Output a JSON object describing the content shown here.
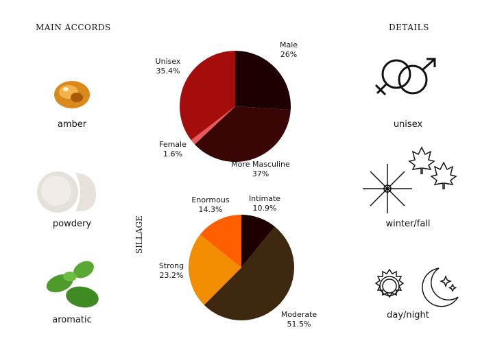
{
  "headers": {
    "main_accords": "MAIN ACCORDS",
    "details": "DETAILS"
  },
  "accords": [
    {
      "label": "amber",
      "icon": "amber-icon"
    },
    {
      "label": "powdery",
      "icon": "powder-icon"
    },
    {
      "label": "aromatic",
      "icon": "mint-leaves-icon"
    }
  ],
  "details": [
    {
      "label": "unisex",
      "icon": "gender-symbols-icon"
    },
    {
      "label": "winter/fall",
      "icon": "snowflake-maple-leaf-icon"
    },
    {
      "label": "day/night",
      "icon": "sun-moon-icon"
    }
  ],
  "chart_data": [
    {
      "type": "pie",
      "title": "",
      "start": "top",
      "direction": "clockwise",
      "slices": [
        {
          "label": "Male",
          "value": 26,
          "display": "26%",
          "color": "#1e0000"
        },
        {
          "label": "More Masculine",
          "value": 37,
          "display": "37%",
          "color": "#3a0505"
        },
        {
          "label": "Female",
          "value": 1.6,
          "display": "1.6%",
          "color": "#e85a5a"
        },
        {
          "label": "Unisex",
          "value": 35.4,
          "display": "35.4%",
          "color": "#a50d0d"
        }
      ]
    },
    {
      "type": "pie",
      "title": "SILLAGE",
      "start": "top",
      "direction": "clockwise",
      "slices": [
        {
          "label": "Intimate",
          "value": 10.9,
          "display": "10.9%",
          "color": "#1e0000"
        },
        {
          "label": "Moderate",
          "value": 51.5,
          "display": "51.5%",
          "color": "#3f2810"
        },
        {
          "label": "Strong",
          "value": 23.2,
          "display": "23.2%",
          "color": "#f28c00"
        },
        {
          "label": "Enormous",
          "value": 14.3,
          "display": "14.3%",
          "color": "#ff5f00"
        }
      ]
    }
  ]
}
